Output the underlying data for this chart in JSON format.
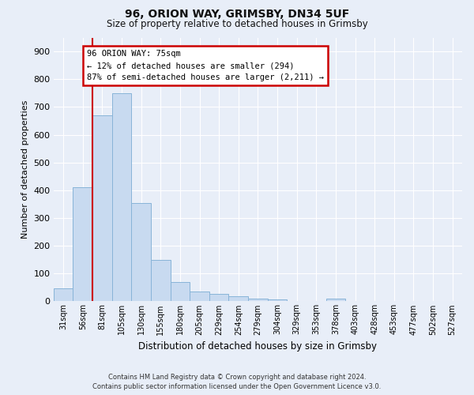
{
  "title_line1": "96, ORION WAY, GRIMSBY, DN34 5UF",
  "title_line2": "Size of property relative to detached houses in Grimsby",
  "xlabel": "Distribution of detached houses by size in Grimsby",
  "ylabel": "Number of detached properties",
  "bar_values": [
    47,
    410,
    670,
    750,
    355,
    148,
    70,
    35,
    27,
    18,
    10,
    8,
    0,
    0,
    10,
    0,
    0,
    0,
    0,
    0,
    0
  ],
  "bar_labels": [
    "31sqm",
    "56sqm",
    "81sqm",
    "105sqm",
    "130sqm",
    "155sqm",
    "180sqm",
    "205sqm",
    "229sqm",
    "254sqm",
    "279sqm",
    "304sqm",
    "329sqm",
    "353sqm",
    "378sqm",
    "403sqm",
    "428sqm",
    "453sqm",
    "477sqm",
    "502sqm",
    "527sqm"
  ],
  "ylim": [
    0,
    950
  ],
  "yticks": [
    0,
    100,
    200,
    300,
    400,
    500,
    600,
    700,
    800,
    900
  ],
  "bar_color": "#c8daf0",
  "bar_edge_color": "#88b4d8",
  "vline_x": 1.5,
  "vline_color": "#cc0000",
  "annotation_text": "96 ORION WAY: 75sqm\n← 12% of detached houses are smaller (294)\n87% of semi-detached houses are larger (2,211) →",
  "annotation_box_facecolor": "#ffffff",
  "annotation_box_edgecolor": "#cc0000",
  "footer_line1": "Contains HM Land Registry data © Crown copyright and database right 2024.",
  "footer_line2": "Contains public sector information licensed under the Open Government Licence v3.0.",
  "background_color": "#e8eef8",
  "grid_color": "#ffffff"
}
